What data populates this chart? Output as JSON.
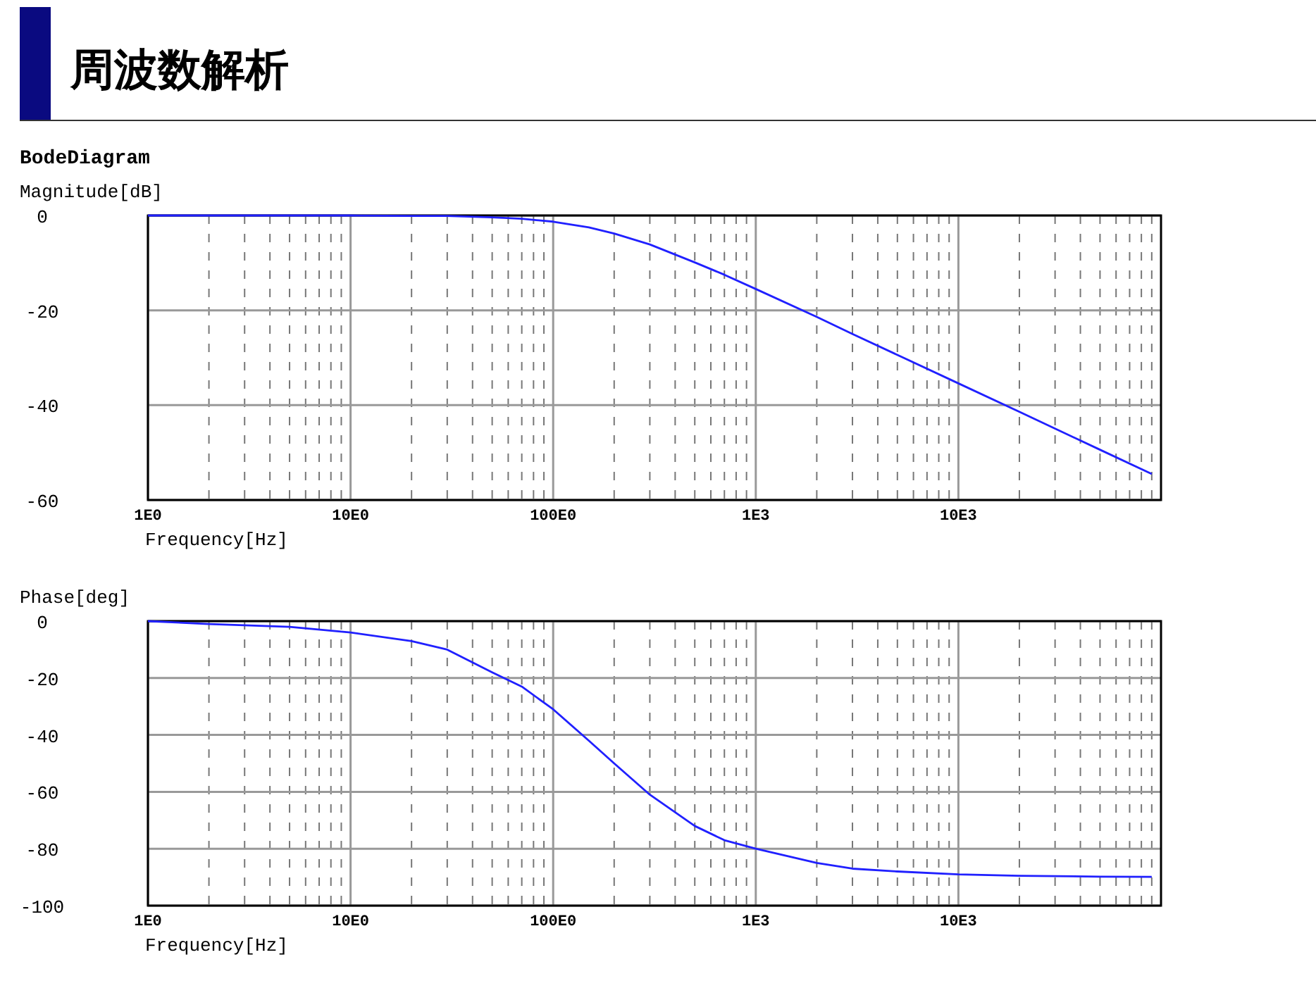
{
  "chart_data": [
    {
      "type": "line",
      "title": "周波数解析",
      "subtitle": "BodeDiagram",
      "xlabel": "Frequency[Hz]",
      "ylabel": "Magnitude[dB]",
      "log": "x",
      "grid": true,
      "x": [
        1,
        2,
        5,
        10,
        20,
        30,
        50,
        70,
        100,
        150,
        200,
        300,
        500,
        700,
        1000,
        2000,
        3000,
        5000,
        10000,
        20000,
        50000,
        90000
      ],
      "series": [
        {
          "color": "#2020ff",
          "values": [
            0,
            0,
            0,
            0,
            -0.1,
            -0.1,
            -0.4,
            -0.7,
            -1.3,
            -2.5,
            -3.8,
            -6.1,
            -9.9,
            -12.5,
            -15.5,
            -21.4,
            -25,
            -29.4,
            -35.4,
            -41.4,
            -49.4,
            -54.5
          ]
        }
      ],
      "xlim": [
        1,
        100000
      ],
      "ylim": [
        -60,
        0
      ],
      "yticks": [
        0,
        -20,
        -40,
        -60
      ],
      "xticks": [
        {
          "value": 1,
          "label": "1E0"
        },
        {
          "value": 2,
          "label": null
        },
        {
          "value": 3,
          "label": null
        },
        {
          "value": 4,
          "label": null
        },
        {
          "value": 5,
          "label": null
        },
        {
          "value": 6,
          "label": null
        },
        {
          "value": 7,
          "label": null
        },
        {
          "value": 8,
          "label": null
        },
        {
          "value": 9,
          "label": null
        },
        {
          "value": 10,
          "label": "10E0"
        },
        {
          "value": 20,
          "label": null
        },
        {
          "value": 30,
          "label": null
        },
        {
          "value": 40,
          "label": null
        },
        {
          "value": 50,
          "label": null
        },
        {
          "value": 60,
          "label": null
        },
        {
          "value": 70,
          "label": null
        },
        {
          "value": 80,
          "label": null
        },
        {
          "value": 90,
          "label": null
        },
        {
          "value": 100,
          "label": "100E0"
        },
        {
          "value": 200,
          "label": null
        },
        {
          "value": 300,
          "label": null
        },
        {
          "value": 400,
          "label": null
        },
        {
          "value": 500,
          "label": null
        },
        {
          "value": 600,
          "label": null
        },
        {
          "value": 700,
          "label": null
        },
        {
          "value": 800,
          "label": null
        },
        {
          "value": 900,
          "label": null
        },
        {
          "value": 1000,
          "label": "1E3"
        },
        {
          "value": 2000,
          "label": null
        },
        {
          "value": 3000,
          "label": null
        },
        {
          "value": 4000,
          "label": null
        },
        {
          "value": 5000,
          "label": null
        },
        {
          "value": 6000,
          "label": null
        },
        {
          "value": 7000,
          "label": null
        },
        {
          "value": 8000,
          "label": null
        },
        {
          "value": 9000,
          "label": null
        },
        {
          "value": 10000,
          "label": "10E3"
        },
        {
          "value": 20000,
          "label": null
        },
        {
          "value": 30000,
          "label": null
        },
        {
          "value": 40000,
          "label": null
        },
        {
          "value": 50000,
          "label": null
        },
        {
          "value": 60000,
          "label": null
        },
        {
          "value": 70000,
          "label": null
        },
        {
          "value": 80000,
          "label": null
        },
        {
          "value": 90000,
          "label": null
        }
      ]
    },
    {
      "type": "line",
      "xlabel": "Frequency[Hz]",
      "ylabel": "Phase[deg]",
      "log": "x",
      "grid": true,
      "x": [
        1,
        2,
        5,
        10,
        20,
        30,
        50,
        70,
        100,
        150,
        200,
        300,
        500,
        700,
        1000,
        2000,
        3000,
        5000,
        10000,
        20000,
        50000,
        90000
      ],
      "series": [
        {
          "color": "#2020ff",
          "values": [
            0,
            -1,
            -2,
            -4,
            -7,
            -10,
            -18,
            -23,
            -31,
            -42,
            -50,
            -61,
            -72,
            -77,
            -80,
            -85,
            -87,
            -88,
            -89,
            -89.5,
            -89.8,
            -89.9
          ]
        }
      ],
      "xlim": [
        1,
        100000
      ],
      "ylim": [
        -100,
        0
      ],
      "yticks": [
        0,
        -20,
        -40,
        -60,
        -80,
        -100
      ],
      "xticks": [
        {
          "value": 1,
          "label": "1E0"
        },
        {
          "value": 2,
          "label": null
        },
        {
          "value": 3,
          "label": null
        },
        {
          "value": 4,
          "label": null
        },
        {
          "value": 5,
          "label": null
        },
        {
          "value": 6,
          "label": null
        },
        {
          "value": 7,
          "label": null
        },
        {
          "value": 8,
          "label": null
        },
        {
          "value": 9,
          "label": null
        },
        {
          "value": 10,
          "label": "10E0"
        },
        {
          "value": 20,
          "label": null
        },
        {
          "value": 30,
          "label": null
        },
        {
          "value": 40,
          "label": null
        },
        {
          "value": 50,
          "label": null
        },
        {
          "value": 60,
          "label": null
        },
        {
          "value": 70,
          "label": null
        },
        {
          "value": 80,
          "label": null
        },
        {
          "value": 90,
          "label": null
        },
        {
          "value": 100,
          "label": "100E0"
        },
        {
          "value": 200,
          "label": null
        },
        {
          "value": 300,
          "label": null
        },
        {
          "value": 400,
          "label": null
        },
        {
          "value": 500,
          "label": null
        },
        {
          "value": 600,
          "label": null
        },
        {
          "value": 700,
          "label": null
        },
        {
          "value": 800,
          "label": null
        },
        {
          "value": 900,
          "label": null
        },
        {
          "value": 1000,
          "label": "1E3"
        },
        {
          "value": 2000,
          "label": null
        },
        {
          "value": 3000,
          "label": null
        },
        {
          "value": 4000,
          "label": null
        },
        {
          "value": 5000,
          "label": null
        },
        {
          "value": 6000,
          "label": null
        },
        {
          "value": 7000,
          "label": null
        },
        {
          "value": 8000,
          "label": null
        },
        {
          "value": 9000,
          "label": null
        },
        {
          "value": 10000,
          "label": "10E3"
        },
        {
          "value": 20000,
          "label": null
        },
        {
          "value": 30000,
          "label": null
        },
        {
          "value": 40000,
          "label": null
        },
        {
          "value": 50000,
          "label": null
        },
        {
          "value": 60000,
          "label": null
        },
        {
          "value": 70000,
          "label": null
        },
        {
          "value": 80000,
          "label": null
        },
        {
          "value": 90000,
          "label": null
        }
      ]
    }
  ]
}
